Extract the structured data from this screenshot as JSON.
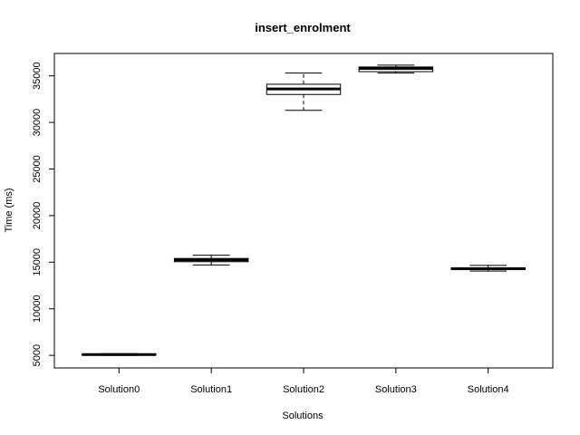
{
  "chart_data": {
    "type": "box",
    "title": "insert_enrolment",
    "xlabel": "Solutions",
    "ylabel": "Time (ms)",
    "categories": [
      "Solution0",
      "Solution1",
      "Solution2",
      "Solution3",
      "Solution4"
    ],
    "boxes": [
      {
        "name": "Solution0",
        "min": 5000,
        "q1": 5020,
        "median": 5080,
        "q3": 5140,
        "max": 5180
      },
      {
        "name": "Solution1",
        "min": 14700,
        "q1": 15050,
        "median": 15250,
        "q3": 15400,
        "max": 15750
      },
      {
        "name": "Solution2",
        "min": 31300,
        "q1": 33000,
        "median": 33600,
        "q3": 34100,
        "max": 35300
      },
      {
        "name": "Solution3",
        "min": 35300,
        "q1": 35450,
        "median": 35800,
        "q3": 35950,
        "max": 36150
      },
      {
        "name": "Solution4",
        "min": 14050,
        "q1": 14200,
        "median": 14300,
        "q3": 14400,
        "max": 14650
      }
    ],
    "yticks": [
      5000,
      10000,
      15000,
      20000,
      25000,
      30000,
      35000
    ],
    "ylim": [
      3650,
      37400
    ],
    "grid": false,
    "legend": "none",
    "colors": {
      "box_fill": "#ffffff",
      "stroke": "#000000"
    }
  }
}
